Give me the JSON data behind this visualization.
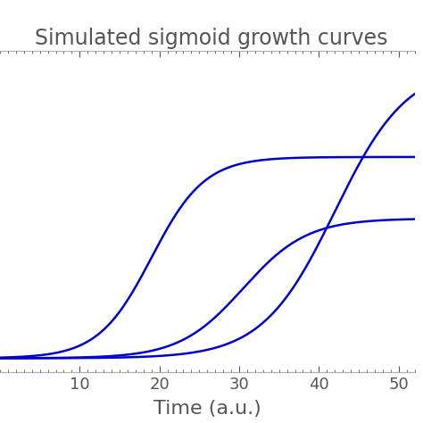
{
  "title": "Simulated sigmoid growth curves",
  "xlabel": "Time (a.u.)",
  "xlim": [
    0,
    52
  ],
  "ylim": [
    -0.05,
    1.1
  ],
  "xticks": [
    10,
    20,
    30,
    40,
    50
  ],
  "curve_color": "#0000cc",
  "line_width": 1.8,
  "curves": [
    {
      "L": 0.72,
      "k": 0.3,
      "x0": 19.0
    },
    {
      "L": 0.5,
      "k": 0.25,
      "x0": 30.5
    },
    {
      "L": 1.05,
      "k": 0.22,
      "x0": 42.0
    }
  ],
  "background_color": "#ffffff",
  "title_fontsize": 17,
  "xlabel_fontsize": 16,
  "tick_labelsize": 13,
  "spine_color": "#aaaaaa",
  "text_color": "#555555"
}
